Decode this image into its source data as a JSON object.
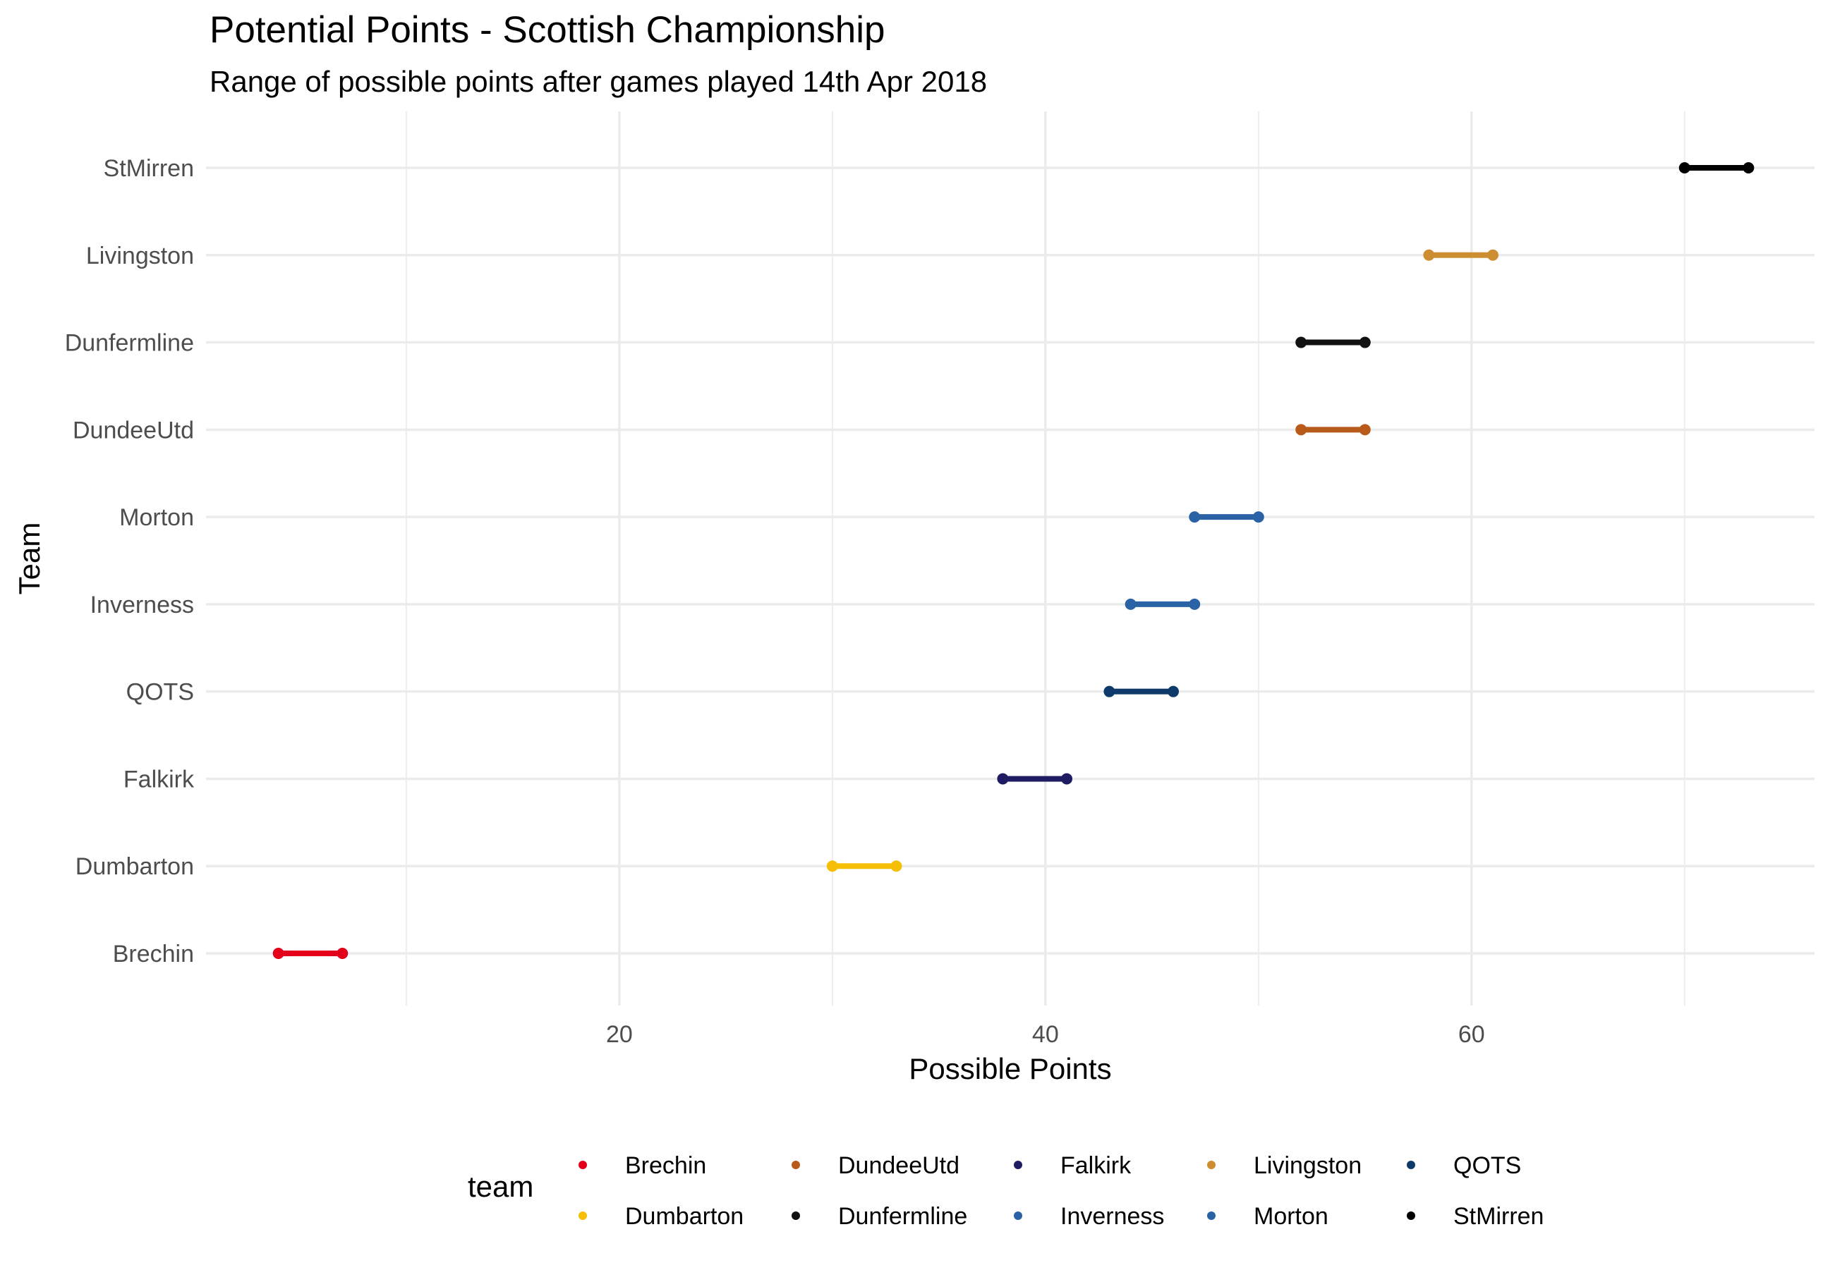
{
  "chart_data": {
    "type": "dumbbell",
    "title": "Potential Points - Scottish Championship",
    "subtitle": "Range of possible points after games played 14th Apr 2018",
    "xlabel": "Possible Points",
    "ylabel": "Team",
    "xlim": [
      0.6,
      76.1
    ],
    "x_ticks": [
      20,
      40,
      60
    ],
    "x_minor_ticks": [
      10,
      30,
      50,
      70
    ],
    "grid": true,
    "legend": {
      "title": "team",
      "position": "bottom",
      "entries": [
        {
          "name": "Brechin",
          "color": "#E4001B"
        },
        {
          "name": "Dumbarton",
          "color": "#F5BE07"
        },
        {
          "name": "DundeeUtd",
          "color": "#B85A1A"
        },
        {
          "name": "Dunfermline",
          "color": "#111111"
        },
        {
          "name": "Falkirk",
          "color": "#1F1C63"
        },
        {
          "name": "Inverness",
          "color": "#2A62A6"
        },
        {
          "name": "Livingston",
          "color": "#CD8D31"
        },
        {
          "name": "Morton",
          "color": "#2A62A6"
        },
        {
          "name": "QOTS",
          "color": "#0E3A6B"
        },
        {
          "name": "StMirren",
          "color": "#000000"
        }
      ]
    },
    "categories": [
      "Brechin",
      "Dumbarton",
      "Falkirk",
      "QOTS",
      "Inverness",
      "Morton",
      "DundeeUtd",
      "Dunfermline",
      "Livingston",
      "StMirren"
    ],
    "series": [
      {
        "team": "Brechin",
        "min": 4,
        "max": 7,
        "color": "#E4001B"
      },
      {
        "team": "Dumbarton",
        "min": 30,
        "max": 33,
        "color": "#F5BE07"
      },
      {
        "team": "Falkirk",
        "min": 38,
        "max": 41,
        "color": "#1F1C63"
      },
      {
        "team": "QOTS",
        "min": 43,
        "max": 46,
        "color": "#0E3A6B"
      },
      {
        "team": "Inverness",
        "min": 44,
        "max": 47,
        "color": "#2A62A6"
      },
      {
        "team": "Morton",
        "min": 47,
        "max": 50,
        "color": "#2A62A6"
      },
      {
        "team": "DundeeUtd",
        "min": 52,
        "max": 55,
        "color": "#B85A1A"
      },
      {
        "team": "Dunfermline",
        "min": 52,
        "max": 55,
        "color": "#111111"
      },
      {
        "team": "Livingston",
        "min": 58,
        "max": 61,
        "color": "#CD8D31"
      },
      {
        "team": "StMirren",
        "min": 70,
        "max": 73,
        "color": "#000000"
      }
    ]
  }
}
